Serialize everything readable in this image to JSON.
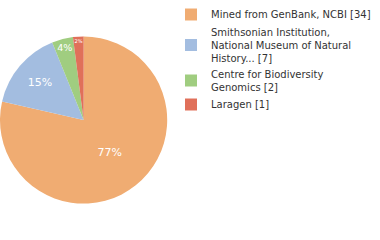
{
  "chart_data": {
    "type": "pie",
    "categories": [
      "Mined from GenBank, NCBI [34]",
      "Smithsonian Institution, National Museum of Natural History... [7]",
      "Centre for Biodiversity Genomics [2]",
      "Laragen [1]"
    ],
    "values": [
      77,
      15,
      4,
      2
    ],
    "value_labels": [
      "77%",
      "15%",
      "4%",
      "2%"
    ],
    "colors": [
      "#f0ac72",
      "#a3bde0",
      "#a0cd80",
      "#e0705a"
    ],
    "data_labels": true,
    "legend": "right"
  }
}
